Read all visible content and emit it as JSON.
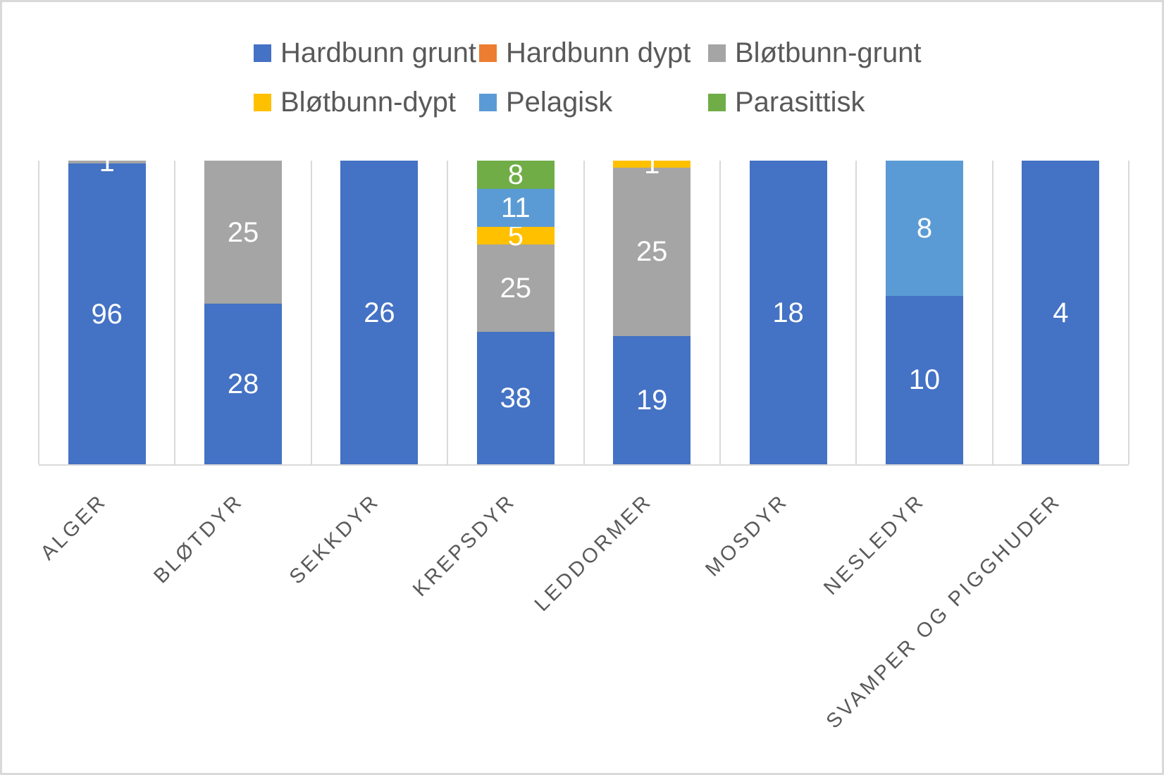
{
  "chart_data": {
    "type": "bar",
    "subtype": "stacked-100-percent",
    "title": "",
    "xlabel": "",
    "ylabel": "",
    "legend_position": "top",
    "grid": "vertical category separators only, light gray",
    "y_axis_visible": false,
    "x_label_rotation_deg": 45,
    "data_label_style": "white, centered in segment, shown only for non-zero values",
    "categories": [
      "ALGER",
      "BLØTDYR",
      "SEKKDYR",
      "KREPSDYR",
      "LEDDORMER",
      "MOSDYR",
      "NESLEDYR",
      "SVAMPER OG PIGGHUDER"
    ],
    "series": [
      {
        "name": "Hardbunn grunt",
        "color": "#4472C4",
        "values": [
          96,
          28,
          26,
          38,
          19,
          18,
          10,
          4
        ]
      },
      {
        "name": "Hardbunn dypt",
        "color": "#ED7D31",
        "values": [
          0,
          0,
          0,
          0,
          0,
          0,
          0,
          0
        ]
      },
      {
        "name": "Bløtbunn-grunt",
        "color": "#A5A5A5",
        "values": [
          1,
          25,
          0,
          25,
          25,
          0,
          0,
          0
        ]
      },
      {
        "name": "Bløtbunn-dypt",
        "color": "#FFC000",
        "values": [
          0,
          0,
          0,
          5,
          1,
          0,
          0,
          0
        ]
      },
      {
        "name": "Pelagisk",
        "color": "#5B9BD5",
        "values": [
          0,
          0,
          0,
          11,
          0,
          0,
          8,
          0
        ]
      },
      {
        "name": "Parasittisk",
        "color": "#70AD47",
        "values": [
          0,
          0,
          0,
          8,
          0,
          0,
          0,
          0
        ]
      }
    ]
  },
  "colors": {
    "gridline": "#D9D9D9",
    "frame": "#D9D9D9",
    "legend_text": "#595959",
    "axis_text": "#595959",
    "data_label_text": "#FFFFFF",
    "background": "#FFFFFF"
  }
}
